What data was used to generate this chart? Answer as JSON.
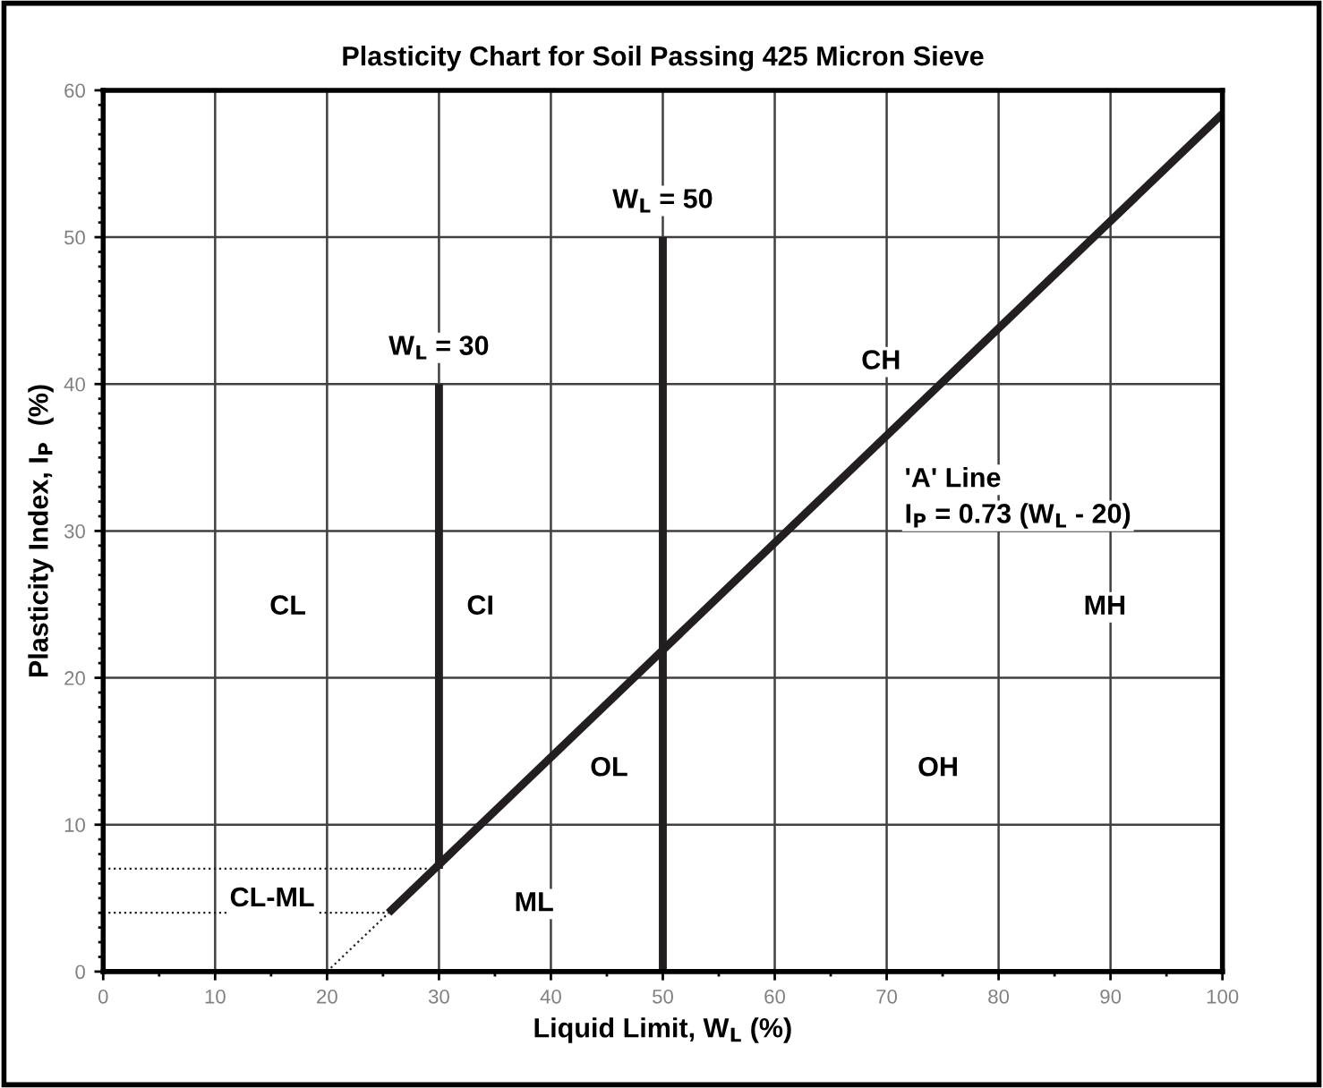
{
  "chart_data": {
    "type": "line",
    "title": "Plasticity Chart for Soil Passing 425 Micron Sieve",
    "xlabel": "Liquid Limit, W$_{L}$ (%)",
    "ylabel": "Plasticity Index, I$_{P}$  (%)",
    "xlim": [
      0,
      100
    ],
    "xticks": [
      0,
      10,
      20,
      30,
      40,
      50,
      60,
      70,
      80,
      90,
      100
    ],
    "ylim": [
      0,
      60
    ],
    "yticks": [
      0,
      10,
      20,
      30,
      40,
      50,
      60
    ],
    "grid": true,
    "legend": false,
    "marker": "none",
    "series": [
      {
        "color": "#231f20",
        "line_style": "solid",
        "x": [
          25.5,
          100
        ],
        "values": [
          4,
          58.4
        ]
      },
      {
        "color": "#231f20",
        "line_style": "dotted",
        "x": [
          20,
          25.5
        ],
        "values": [
          0,
          4
        ]
      },
      {
        "color": "#231f20",
        "line_style": "dotted",
        "x": [
          0,
          25.5
        ],
        "values": [
          4,
          4
        ]
      },
      {
        "color": "#231f20",
        "line_style": "dotted",
        "x": [
          0,
          30
        ],
        "values": [
          7,
          7
        ]
      },
      {
        "color": "#231f20",
        "line_style": "solid",
        "x": [
          30,
          30
        ],
        "values": [
          7,
          40
        ]
      },
      {
        "color": "#231f20",
        "line_style": "solid",
        "x": [
          50,
          50
        ],
        "values": [
          0,
          50
        ]
      }
    ],
    "annotations": [
      {
        "text": "W$_{L}$ = 30",
        "x": 30,
        "y": 40
      },
      {
        "text": "W$_{L}$ = 50",
        "x": 50,
        "y": 50
      },
      "'A' Line",
      "I$_{P}$ = 0.73 (W$_{L}$ - 20)",
      {
        "text": "CL",
        "x": 16.5,
        "y": 24.8
      },
      {
        "text": "CI",
        "x": 33.7,
        "y": 24.8
      },
      {
        "text": "CH",
        "x": 69.5,
        "y": 41.5
      },
      {
        "text": "MH",
        "x": 89.5,
        "y": 24.8
      },
      {
        "text": "OL",
        "x": 45.2,
        "y": 13.8
      },
      {
        "text": "OH",
        "x": 74.6,
        "y": 13.8
      },
      {
        "text": "ML",
        "x": 38.5,
        "y": 4.6
      },
      "CL-ML"
    ]
  }
}
